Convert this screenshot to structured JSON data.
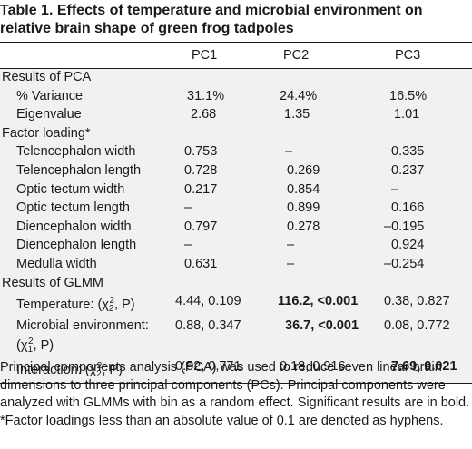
{
  "title": "Table 1. Effects of temperature and microbial environment on relative brain shape of green frog tadpoles",
  "columns": [
    "",
    "PC1",
    "PC2",
    "PC3"
  ],
  "sections": [
    {
      "label": "Results of PCA",
      "rows": [
        {
          "label": "% Variance",
          "values": [
            "31.1%",
            "24.4%",
            "16.5%"
          ]
        },
        {
          "label": "Eigenvalue",
          "values": [
            "2.68",
            "1.35",
            "1.01"
          ]
        }
      ]
    },
    {
      "label": "Factor loading*",
      "rows": [
        {
          "label": "Telencephalon width",
          "values": [
            "0.753",
            "–",
            "0.335"
          ]
        },
        {
          "label": "Telencephalon length",
          "values": [
            "0.728",
            "0.269",
            "0.237"
          ]
        },
        {
          "label": "Optic tectum width",
          "values": [
            "0.217",
            "0.854",
            "–"
          ]
        },
        {
          "label": "Optic tectum length",
          "values": [
            "–",
            "0.899",
            "0.166"
          ]
        },
        {
          "label": "Diencephalon width",
          "values": [
            "0.797",
            "0.278",
            "–0.195"
          ]
        },
        {
          "label": "Diencephalon length",
          "values": [
            "–",
            "–",
            "0.924"
          ]
        },
        {
          "label": "Medulla width",
          "values": [
            "0.631",
            "–",
            "–0.254"
          ]
        }
      ]
    },
    {
      "label": "Results of GLMM",
      "rows": [
        {
          "label_pre": "Temperature: (χ",
          "label_sub": "2",
          "label_sup": "2",
          "label_post": ", P)",
          "values": [
            "4.44, 0.109",
            "116.2, <0.001",
            "0.38, 0.827"
          ]
        },
        {
          "label_pre": "Microbial environment:",
          "label_line2_pre": "(χ",
          "label_sub": "1",
          "label_sup": "2",
          "label_post": ", P)",
          "values": [
            "0.88, 0.347",
            "36.7, <0.001",
            "0.08, 0.772"
          ]
        },
        {
          "label_pre": "Interaction: (χ",
          "label_sub": "2",
          "label_sup": "2",
          "label_post": ", P)",
          "values": [
            "0.52, 0,771",
            "0.18, 0.916",
            "7.69, 0.021"
          ]
        }
      ]
    }
  ],
  "footnote": "Principal components analysis (PCA) was used to reduce seven linear brain dimensions to three principal components (PCs). Principal components were analyzed with GLMMs with bin as a random effect. Significant results are in bold. *Factor loadings less than an absolute value of 0.1 are denoted as hyphens."
}
